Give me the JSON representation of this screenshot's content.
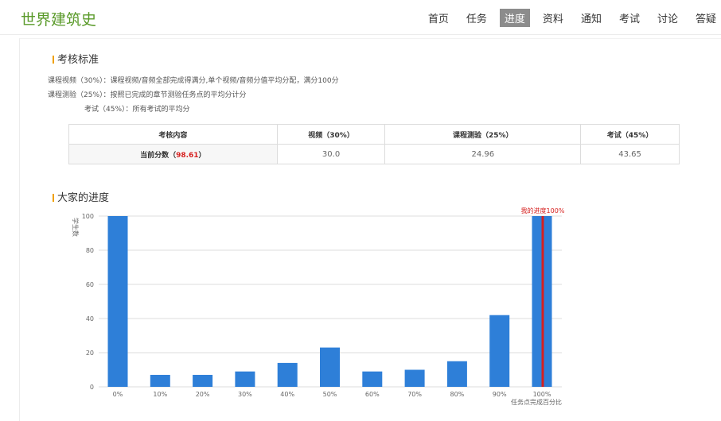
{
  "header": {
    "course_title": "世界建筑史",
    "nav": [
      "首页",
      "任务",
      "进度",
      "资料",
      "通知",
      "考试",
      "讨论",
      "答疑"
    ],
    "active_index": 2
  },
  "assessment": {
    "title": "考核标准",
    "lines": [
      "课程视频（30%）：课程视频/音频全部完成得满分,单个视频/音频分值平均分配，满分100分",
      "课程测验（25%）：按照已完成的章节测验任务点的平均分计分",
      "考试（45%）：所有考试的平均分"
    ],
    "table": {
      "headers": [
        "考核内容",
        "视频（30%）",
        "课程测验（25%）",
        "考试（45%）"
      ],
      "current_label": "当前分数（",
      "current_total": "98.61",
      "current_close": "）",
      "video": "30.0",
      "quiz": "24.96",
      "exam": "43.65"
    }
  },
  "progress_section": {
    "title": "大家的进度"
  },
  "colors": {
    "bar": "#2e7fd8",
    "my_line": "#d6201f",
    "grid": "#dddddd"
  },
  "chart_data": {
    "type": "bar",
    "ylabel": "学生数",
    "xlabel": "任务点完成百分比",
    "ylim": [
      0,
      100
    ],
    "yticks": [
      0,
      20,
      40,
      60,
      80,
      100
    ],
    "categories": [
      "0%",
      "10%",
      "20%",
      "30%",
      "40%",
      "50%",
      "60%",
      "70%",
      "80%",
      "90%",
      "100%"
    ],
    "values": [
      100,
      7,
      7,
      9,
      14,
      23,
      9,
      10,
      15,
      42,
      100
    ],
    "my_progress_label": "我的进度100%",
    "my_progress_category": "100%"
  }
}
